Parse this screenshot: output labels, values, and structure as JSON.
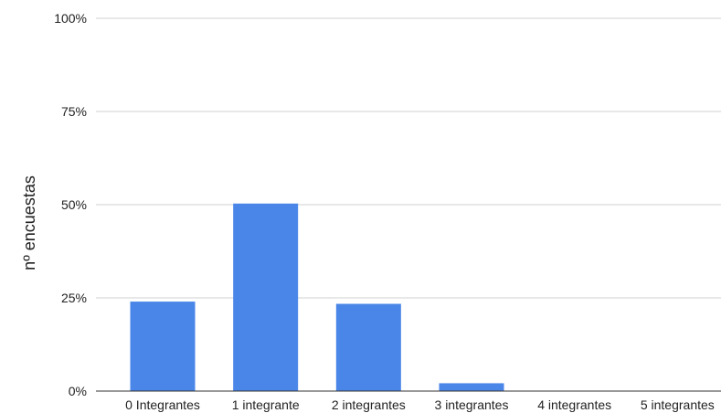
{
  "chart_data": {
    "type": "bar",
    "title": "",
    "xlabel": "",
    "ylabel": "nº encuestas",
    "categories": [
      "0 Integrantes",
      "1 integrante",
      "2 integrantes",
      "3 integrantes",
      "4 integrantes",
      "5 integrantes"
    ],
    "values": [
      24,
      50.3,
      23.4,
      2.1,
      0,
      0
    ],
    "ylim": [
      0,
      100
    ],
    "yticks": [
      0,
      25,
      50,
      75,
      100
    ],
    "ytick_labels": [
      "0%",
      "25%",
      "50%",
      "75%",
      "100%"
    ],
    "grid": true,
    "legend": "none",
    "colors": {
      "bar": "#4a86e8",
      "grid": "#d0d0d0",
      "baseline": "#333333",
      "text": "#222222"
    }
  }
}
